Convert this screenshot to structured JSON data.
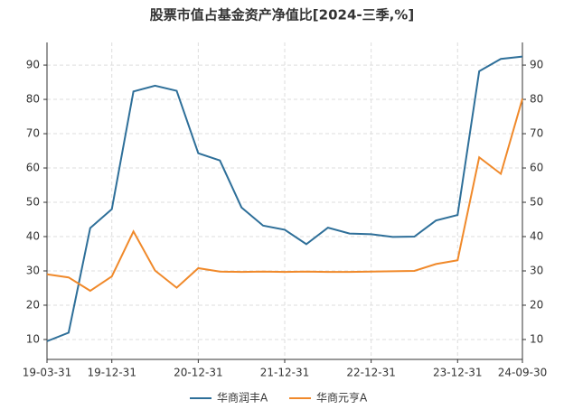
{
  "chart_data": {
    "type": "line",
    "title": "股票市值占基金资产净值比[2024-三季,%]",
    "categories": [
      "19-03-31",
      null,
      null,
      "19-12-31",
      null,
      null,
      null,
      "20-12-31",
      null,
      null,
      null,
      "21-12-31",
      null,
      null,
      null,
      "22-12-31",
      null,
      null,
      null,
      "23-12-31",
      null,
      null,
      "24-09-30"
    ],
    "series": [
      {
        "name": "华商润丰A",
        "color": "#2e6f99",
        "values": [
          9.5,
          12,
          42.5,
          48,
          82.3,
          84,
          82.5,
          64.3,
          62.2,
          48.5,
          43.2,
          42,
          37.8,
          42.6,
          40.9,
          40.7,
          39.9,
          40,
          44.7,
          46.3,
          88.2,
          91.8,
          92.5
        ]
      },
      {
        "name": "华商元亨A",
        "color": "#f0892a",
        "values": [
          29,
          28.1,
          24.2,
          28.4,
          41.5,
          30.1,
          25.1,
          30.8,
          29.8,
          29.7,
          29.8,
          29.7,
          29.8,
          29.7,
          29.7,
          29.8,
          29.9,
          30,
          32,
          33.1,
          63.1,
          58.3,
          80.2
        ]
      }
    ],
    "ylim": [
      4.2,
      96.6
    ],
    "yticks": [
      10,
      20,
      30,
      40,
      50,
      60,
      70,
      80,
      90
    ],
    "y2lim": [
      4.2,
      96.6
    ],
    "y2ticks": [
      10,
      20,
      30,
      40,
      50,
      60,
      70,
      80,
      90
    ],
    "grid": true,
    "legend": "bottom"
  }
}
